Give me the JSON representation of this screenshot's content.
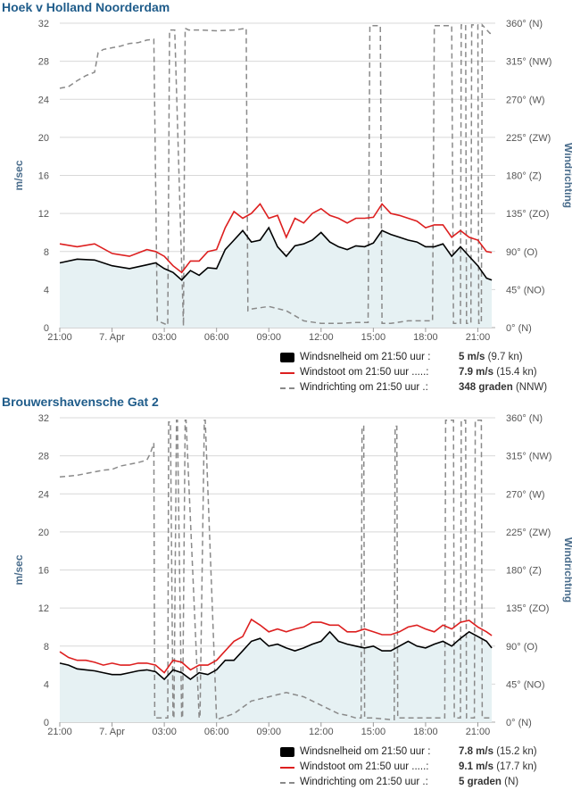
{
  "colors": {
    "speed": "#000000",
    "gust": "#dd1f1f",
    "direction": "#8a8a8a",
    "area_fill": "#e6f1f3",
    "title": "#1f5c8a",
    "axis_label": "#4a6d8c",
    "grid": "#d8d8d8"
  },
  "panels": [
    {
      "title": "Hoek v Holland Noorderdam",
      "legend": [
        {
          "label": "Windsnelheid om 21:50 uur :",
          "value": "5 m/s",
          "extra": "(9.7 kn)"
        },
        {
          "label": "Windstoot om 21:50 uur .....:",
          "value": "7.9 m/s",
          "extra": "(15.4 kn)"
        },
        {
          "label": "Windrichting om 21:50 uur .:",
          "value": "348 graden",
          "extra": "(NNW)"
        }
      ],
      "chart_data": {
        "type": "line",
        "xlabel": "",
        "ylabel": "m/sec",
        "y2label": "Windrichting",
        "x_range_hours": [
          21,
          46
        ],
        "ylim": [
          0,
          32
        ],
        "y2lim": [
          0,
          360
        ],
        "x_tick_labels": [
          "21:00",
          "7. Apr",
          "03:00",
          "06:00",
          "09:00",
          "12:00",
          "15:00",
          "18:00",
          "21:00"
        ],
        "y_tick_labels": [
          "0",
          "4",
          "8",
          "12",
          "16",
          "20",
          "24",
          "28",
          "32"
        ],
        "y2_tick_labels": [
          "0° (N)",
          "45° (NO)",
          "90° (O)",
          "135° (ZO)",
          "180° (Z)",
          "225° (ZW)",
          "270° (W)",
          "315° (NW)",
          "360° (N)"
        ],
        "grid": true,
        "series": [
          {
            "name": "Windsnelheid",
            "axis": "left",
            "x": [
              21,
              22,
              23,
              24,
              25,
              26,
              26.5,
              27,
              27.5,
              28,
              28.5,
              29,
              29.5,
              30,
              30.5,
              31,
              31.5,
              32,
              32.5,
              33,
              33.5,
              34,
              34.5,
              35,
              35.5,
              36,
              36.5,
              37,
              37.5,
              38,
              38.5,
              39,
              39.5,
              40,
              40.5,
              41,
              41.5,
              42,
              42.5,
              43,
              43.5,
              44,
              44.5,
              45,
              45.5,
              45.8
            ],
            "y": [
              6.8,
              7.2,
              7.1,
              6.5,
              6.2,
              6.6,
              6.8,
              6.2,
              5.8,
              5.0,
              6.0,
              5.5,
              6.3,
              6.2,
              8.2,
              9.2,
              10.2,
              9.0,
              9.2,
              10.5,
              8.5,
              7.5,
              8.6,
              8.8,
              9.2,
              10.0,
              9.0,
              8.5,
              8.2,
              8.6,
              8.5,
              8.9,
              10.2,
              9.8,
              9.5,
              9.2,
              9.0,
              8.5,
              8.5,
              8.8,
              7.5,
              8.5,
              7.5,
              6.5,
              5.2,
              5.0
            ]
          },
          {
            "name": "Windstoot",
            "axis": "left",
            "x": [
              21,
              22,
              23,
              24,
              25,
              26,
              26.5,
              27,
              27.5,
              28,
              28.5,
              29,
              29.5,
              30,
              30.5,
              31,
              31.5,
              32,
              32.5,
              33,
              33.5,
              34,
              34.5,
              35,
              35.5,
              36,
              36.5,
              37,
              37.5,
              38,
              38.5,
              39,
              39.5,
              40,
              40.5,
              41,
              41.5,
              42,
              42.5,
              43,
              43.5,
              44,
              44.5,
              45,
              45.5,
              45.8
            ],
            "y": [
              8.8,
              8.5,
              8.8,
              7.8,
              7.5,
              8.2,
              8.0,
              7.5,
              6.5,
              5.8,
              7.0,
              7.0,
              8.0,
              8.2,
              10.5,
              12.2,
              11.5,
              12.0,
              13.0,
              11.5,
              11.8,
              9.5,
              11.5,
              11.0,
              12.0,
              12.5,
              11.8,
              11.5,
              11.0,
              11.5,
              11.5,
              11.6,
              13.0,
              12.0,
              11.8,
              11.5,
              11.2,
              10.5,
              10.8,
              10.8,
              9.5,
              10.2,
              9.5,
              9.2,
              8.0,
              7.9
            ]
          },
          {
            "name": "Windrichting",
            "axis": "right",
            "x": [
              21,
              21.5,
              22,
              22.5,
              23,
              23.2,
              23.5,
              24,
              24.5,
              25,
              25.5,
              26,
              26.4,
              26.6,
              27.2,
              27.3,
              27.6,
              28.1,
              28.2,
              28.4,
              29,
              30,
              31,
              31.7,
              31.8,
              32,
              33,
              34,
              35,
              36,
              37,
              38,
              38.7,
              38.8,
              39.4,
              39.5,
              40,
              41,
              41.5,
              42.4,
              42.5,
              43.5,
              43.6,
              44,
              44.05,
              44.3,
              44.35,
              44.6,
              44.65,
              45,
              45.05,
              45.2,
              45.25,
              45.7,
              45.8
            ],
            "y": [
              283,
              285,
              292,
              298,
              302,
              325,
              329,
              331,
              333,
              336,
              337,
              340,
              341,
              8,
              3,
              352,
              352,
              2,
              354,
              352,
              352,
              351,
              352,
              354,
              20,
              22,
              25,
              20,
              8,
              5,
              5,
              6,
              6,
              357,
              357,
              5,
              5,
              8,
              8,
              8,
              357,
              357,
              5,
              5,
              358,
              358,
              5,
              5,
              358,
              358,
              5,
              5,
              358,
              348,
              348
            ]
          }
        ]
      }
    },
    {
      "title": "Brouwershavensche Gat 2",
      "legend": [
        {
          "label": "Windsnelheid om 21:50 uur :",
          "value": "7.8 m/s",
          "extra": "(15.2 kn)"
        },
        {
          "label": "Windstoot om 21:50 uur .....:",
          "value": "9.1 m/s",
          "extra": "(17.7 kn)"
        },
        {
          "label": "Windrichting om 21:50 uur .:",
          "value": "5 graden",
          "extra": "(N)"
        }
      ],
      "chart_data": {
        "type": "line",
        "xlabel": "",
        "ylabel": "m/sec",
        "y2label": "Windrichting",
        "x_range_hours": [
          21,
          46
        ],
        "ylim": [
          0,
          32
        ],
        "y2lim": [
          0,
          360
        ],
        "x_tick_labels": [
          "21:00",
          "7. Apr",
          "03:00",
          "06:00",
          "09:00",
          "12:00",
          "15:00",
          "18:00",
          "21:00"
        ],
        "y_tick_labels": [
          "0",
          "4",
          "8",
          "12",
          "16",
          "20",
          "24",
          "28",
          "32"
        ],
        "y2_tick_labels": [
          "0° (N)",
          "45° (NO)",
          "90° (O)",
          "135° (ZO)",
          "180° (Z)",
          "225° (ZW)",
          "270° (W)",
          "315° (NW)",
          "360° (N)"
        ],
        "grid": true,
        "series": [
          {
            "name": "Windsnelheid",
            "axis": "left",
            "x": [
              21,
              21.5,
              22,
              22.5,
              23,
              23.5,
              24,
              24.5,
              25,
              25.5,
              26,
              26.5,
              27,
              27.5,
              28,
              28.5,
              29,
              29.5,
              30,
              30.5,
              31,
              31.5,
              32,
              32.5,
              33,
              33.5,
              34,
              34.5,
              35,
              35.5,
              36,
              36.5,
              37,
              37.5,
              38,
              38.5,
              39,
              39.5,
              40,
              40.5,
              41,
              41.5,
              42,
              42.5,
              43,
              43.5,
              44,
              44.5,
              45,
              45.5,
              45.8
            ],
            "y": [
              6.2,
              6.0,
              5.6,
              5.5,
              5.4,
              5.2,
              5.0,
              5.0,
              5.2,
              5.4,
              5.5,
              5.3,
              4.5,
              5.5,
              5.2,
              4.5,
              5.2,
              5.0,
              5.5,
              6.5,
              6.5,
              7.5,
              8.5,
              8.8,
              8.0,
              8.2,
              7.8,
              7.5,
              7.8,
              8.2,
              8.5,
              9.5,
              8.5,
              8.2,
              8.0,
              7.8,
              8.0,
              7.5,
              7.5,
              8.0,
              8.5,
              8.0,
              7.8,
              8.2,
              8.5,
              8.0,
              8.8,
              9.5,
              9.0,
              8.5,
              7.8
            ]
          },
          {
            "name": "Windstoot",
            "axis": "left",
            "x": [
              21,
              21.5,
              22,
              22.5,
              23,
              23.5,
              24,
              24.5,
              25,
              25.5,
              26,
              26.5,
              27,
              27.5,
              28,
              28.5,
              29,
              29.5,
              30,
              30.5,
              31,
              31.5,
              32,
              32.5,
              33,
              33.5,
              34,
              34.5,
              35,
              35.5,
              36,
              36.5,
              37,
              37.5,
              38,
              38.5,
              39,
              39.5,
              40,
              40.5,
              41,
              41.5,
              42,
              42.5,
              43,
              43.5,
              44,
              44.5,
              45,
              45.5,
              45.8
            ],
            "y": [
              7.4,
              6.8,
              6.5,
              6.5,
              6.3,
              6.0,
              6.2,
              6.0,
              6.0,
              6.2,
              6.2,
              6.0,
              5.2,
              6.5,
              6.3,
              5.5,
              6.0,
              6.0,
              6.5,
              7.5,
              8.5,
              9.0,
              10.8,
              10.2,
              9.5,
              9.8,
              9.5,
              9.8,
              10.0,
              10.5,
              10.5,
              10.2,
              10.2,
              9.5,
              9.5,
              9.8,
              9.5,
              9.2,
              9.2,
              9.5,
              10.0,
              10.2,
              9.8,
              9.5,
              10.2,
              9.8,
              10.5,
              10.7,
              10.0,
              9.5,
              9.1
            ]
          },
          {
            "name": "Windrichting",
            "axis": "right",
            "x": [
              21,
              21.5,
              22,
              22.5,
              23,
              23.5,
              24,
              24.5,
              25,
              25.5,
              26,
              26.2,
              26.4,
              26.45,
              27.2,
              27.25,
              27.35,
              27.5,
              27.55,
              27.7,
              27.75,
              28,
              28.05,
              28.2,
              28.25,
              29,
              29.05,
              29.3,
              29.35,
              30,
              31,
              32,
              33,
              34,
              35,
              36,
              37,
              37.5,
              38,
              38.3,
              38.35,
              38.45,
              38.5,
              39,
              40,
              40.2,
              40.25,
              40.35,
              40.4,
              41,
              42,
              42.5,
              43,
              43.1,
              43.15,
              43.6,
              43.65,
              44,
              44.05,
              44.3,
              44.35,
              44.8,
              44.85,
              45.2,
              45.25,
              45.6,
              45.8
            ],
            "y": [
              290,
              291,
              292,
              294,
              296,
              298,
              299,
              303,
              305,
              307,
              310,
              318,
              330,
              5,
              5,
              355,
              355,
              5,
              5,
              357,
              357,
              5,
              5,
              357,
              357,
              5,
              5,
              357,
              357,
              3,
              10,
              25,
              30,
              35,
              30,
              20,
              10,
              8,
              5,
              5,
              350,
              350,
              5,
              5,
              3,
              3,
              350,
              350,
              5,
              5,
              5,
              5,
              5,
              5,
              357,
              357,
              5,
              5,
              357,
              357,
              5,
              5,
              357,
              357,
              5,
              5,
              5
            ]
          }
        ]
      }
    }
  ]
}
